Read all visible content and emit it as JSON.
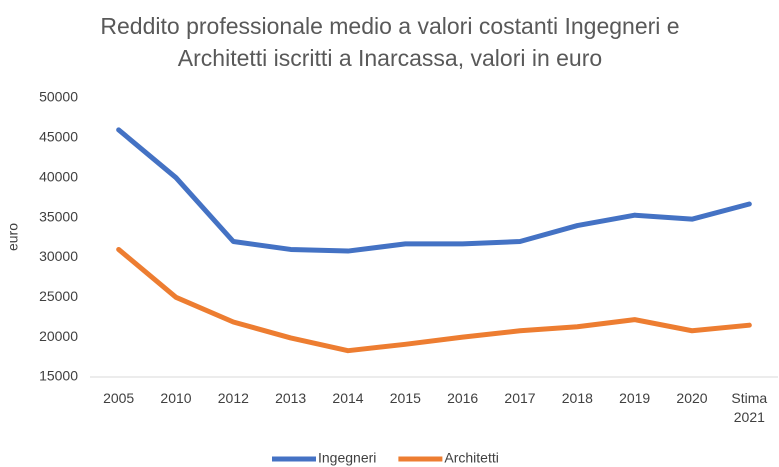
{
  "chart_data": {
    "type": "line",
    "title": "Reddito professionale medio a valori costanti Ingegneri e Architetti iscritti a Inarcassa, valori in euro",
    "ylabel": "euro",
    "categories": [
      "2005",
      "2010",
      "2012",
      "2013",
      "2014",
      "2015",
      "2016",
      "2017",
      "2018",
      "2019",
      "2020",
      "Stima 2021"
    ],
    "series": [
      {
        "name": "Ingegneri",
        "color": "#4472c4",
        "values": [
          46000,
          40000,
          32000,
          31000,
          30800,
          31700,
          31700,
          32000,
          34000,
          35300,
          34800,
          36700
        ]
      },
      {
        "name": "Architetti",
        "color": "#ed7d31",
        "values": [
          31000,
          25000,
          21900,
          19900,
          18300,
          19100,
          20000,
          20800,
          21300,
          22200,
          20800,
          21500
        ]
      }
    ],
    "ylim": [
      15000,
      50000
    ],
    "yticks": [
      15000,
      20000,
      25000,
      30000,
      35000,
      40000,
      45000,
      50000
    ],
    "grid": false,
    "legend": "bottom"
  }
}
